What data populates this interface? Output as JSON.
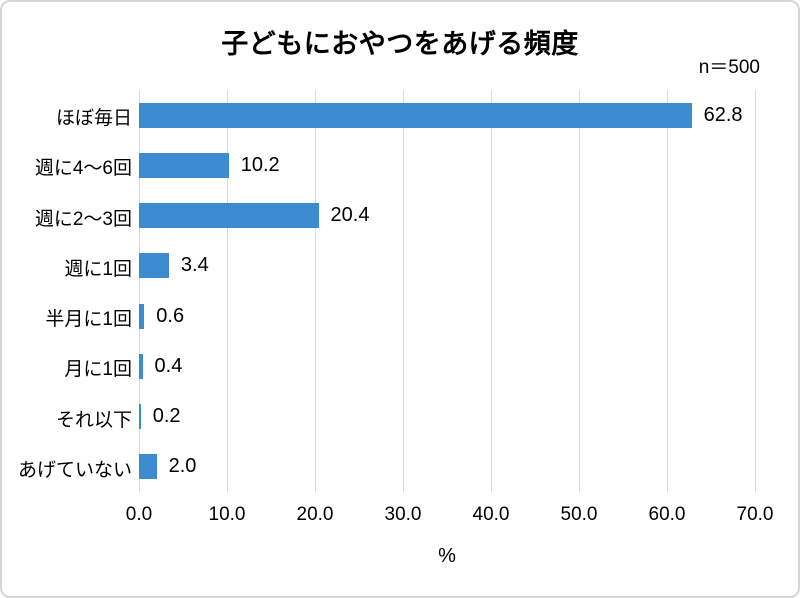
{
  "chart_data": {
    "type": "bar",
    "orientation": "horizontal",
    "title": "子どもにおやつをあげる頻度",
    "annotation": "n＝500",
    "categories": [
      "ほぼ毎日",
      "週に4～6回",
      "週に2～3回",
      "週に1回",
      "半月に1回",
      "月に1回",
      "それ以下",
      "あげていない"
    ],
    "values": [
      62.8,
      10.2,
      20.4,
      3.4,
      0.6,
      0.4,
      0.2,
      2.0
    ],
    "value_labels": [
      "62.8",
      "10.2",
      "20.4",
      "3.4",
      "0.6",
      "0.4",
      "0.2",
      "2.0"
    ],
    "xlabel": "%",
    "xlim": [
      0,
      70
    ],
    "xticks": [
      0,
      10,
      20,
      30,
      40,
      50,
      60,
      70
    ],
    "xtick_labels": [
      "0.0",
      "10.0",
      "20.0",
      "30.0",
      "40.0",
      "50.0",
      "60.0",
      "70.0"
    ],
    "grid": true,
    "legend": false,
    "colors": {
      "bar": "#3c8bd0",
      "gridline": "#d9d9d9",
      "frame_border": "#d6d6d6",
      "text": "#000000",
      "background": "#ffffff"
    }
  }
}
